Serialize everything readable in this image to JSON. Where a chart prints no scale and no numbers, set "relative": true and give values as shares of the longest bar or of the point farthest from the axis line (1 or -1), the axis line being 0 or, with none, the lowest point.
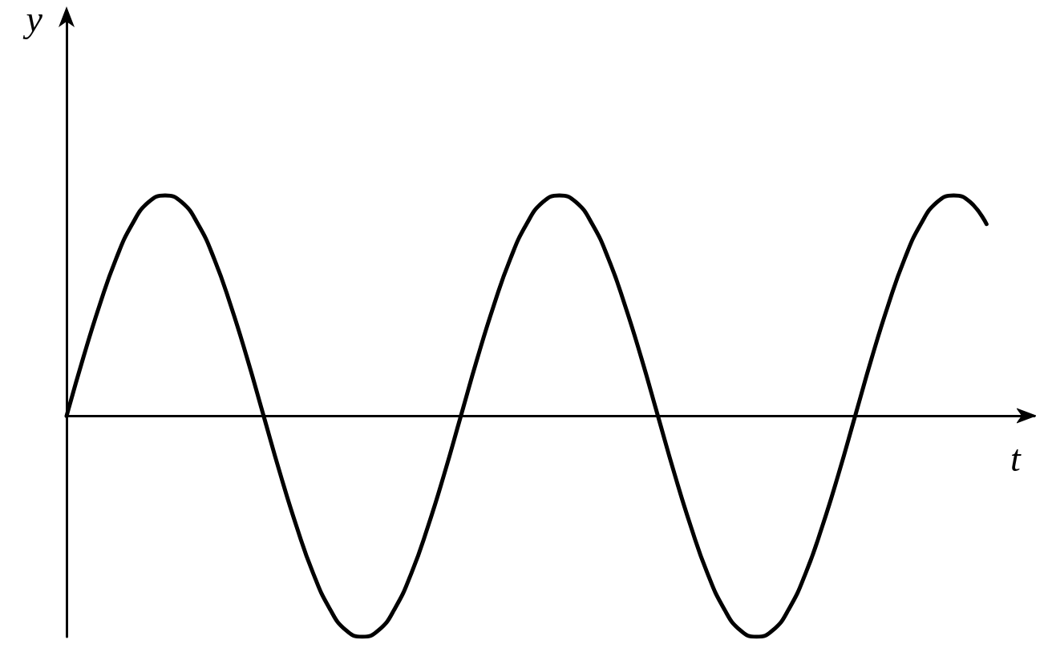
{
  "chart_data": {
    "type": "line",
    "xlabel": "t",
    "ylabel": "y",
    "relative": true,
    "grid": false,
    "categories": [
      null,
      null,
      null,
      null,
      null,
      null,
      null,
      null,
      null,
      null,
      null,
      null,
      null,
      null,
      null,
      null,
      null,
      null,
      null,
      null,
      null,
      null,
      null,
      null,
      null,
      null,
      null,
      null,
      null,
      null,
      null,
      null,
      null,
      null,
      null,
      null,
      null,
      null,
      null,
      null,
      null,
      null,
      null,
      null,
      null,
      null,
      null,
      null,
      null,
      null,
      null,
      null,
      null,
      null,
      null,
      null,
      null
    ],
    "series": [
      {
        "color": "#000000",
        "values": [
          0,
          0.26,
          0.5,
          0.71,
          0.87,
          0.97,
          1,
          0.97,
          0.87,
          0.71,
          0.5,
          0.26,
          0,
          -0.26,
          -0.5,
          -0.71,
          -0.87,
          -0.97,
          -1,
          -0.97,
          -0.87,
          -0.71,
          -0.5,
          -0.26,
          0,
          0.26,
          0.5,
          0.71,
          0.87,
          0.97,
          1,
          0.97,
          0.87,
          0.71,
          0.5,
          0.26,
          0,
          -0.26,
          -0.5,
          -0.71,
          -0.87,
          -0.97,
          -1,
          -0.97,
          -0.87,
          -0.71,
          -0.5,
          -0.26,
          0,
          0.26,
          0.5,
          0.71,
          0.87,
          0.97,
          1,
          0.97,
          0.87
        ]
      }
    ]
  }
}
